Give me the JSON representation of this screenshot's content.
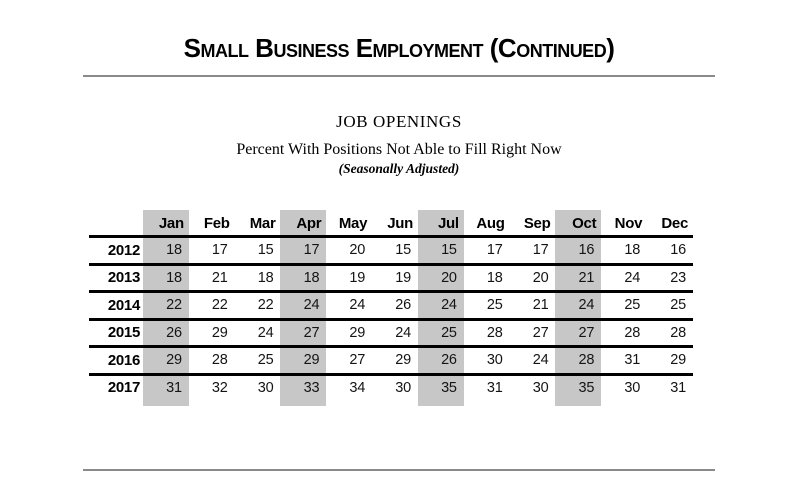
{
  "page": {
    "title": "Small Business Employment (Continued)",
    "section": "JOB OPENINGS",
    "subtitle": "Percent With Positions Not Able to Fill Right Now",
    "subnote": "(Seasonally Adjusted)"
  },
  "colors": {
    "shaded_column": "#c7c7c7",
    "page_rule": "#8a8a8a",
    "table_line": "#000000",
    "text": "#000000"
  },
  "table": {
    "columns": [
      "Jan",
      "Feb",
      "Mar",
      "Apr",
      "May",
      "Jun",
      "Jul",
      "Aug",
      "Sep",
      "Oct",
      "Nov",
      "Dec"
    ],
    "shaded_columns": [
      "Jan",
      "Apr",
      "Jul",
      "Oct"
    ],
    "rows": [
      {
        "year": "2012",
        "values": [
          18,
          17,
          15,
          17,
          20,
          15,
          15,
          17,
          17,
          16,
          18,
          16
        ]
      },
      {
        "year": "2013",
        "values": [
          18,
          21,
          18,
          18,
          19,
          19,
          20,
          18,
          20,
          21,
          24,
          23
        ]
      },
      {
        "year": "2014",
        "values": [
          22,
          22,
          22,
          24,
          24,
          26,
          24,
          25,
          21,
          24,
          25,
          25
        ]
      },
      {
        "year": "2015",
        "values": [
          26,
          29,
          24,
          27,
          29,
          24,
          25,
          28,
          27,
          27,
          28,
          28
        ]
      },
      {
        "year": "2016",
        "values": [
          29,
          28,
          25,
          29,
          27,
          29,
          26,
          30,
          24,
          28,
          31,
          29
        ]
      },
      {
        "year": "2017",
        "values": [
          31,
          32,
          30,
          33,
          34,
          30,
          35,
          31,
          30,
          35,
          30,
          31
        ]
      }
    ]
  },
  "chart_data": {
    "type": "table",
    "title": "JOB OPENINGS",
    "subtitle": "Percent With Positions Not Able to Fill Right Now",
    "note": "(Seasonally Adjusted)",
    "categories": [
      "Jan",
      "Feb",
      "Mar",
      "Apr",
      "May",
      "Jun",
      "Jul",
      "Aug",
      "Sep",
      "Oct",
      "Nov",
      "Dec"
    ],
    "highlighted_columns": [
      "Jan",
      "Apr",
      "Jul",
      "Oct"
    ],
    "series": [
      {
        "name": "2012",
        "values": [
          18,
          17,
          15,
          17,
          20,
          15,
          15,
          17,
          17,
          16,
          18,
          16
        ]
      },
      {
        "name": "2013",
        "values": [
          18,
          21,
          18,
          18,
          19,
          19,
          20,
          18,
          20,
          21,
          24,
          23
        ]
      },
      {
        "name": "2014",
        "values": [
          22,
          22,
          22,
          24,
          24,
          26,
          24,
          25,
          21,
          24,
          25,
          25
        ]
      },
      {
        "name": "2015",
        "values": [
          26,
          29,
          24,
          27,
          29,
          24,
          25,
          28,
          27,
          27,
          28,
          28
        ]
      },
      {
        "name": "2016",
        "values": [
          29,
          28,
          25,
          29,
          27,
          29,
          26,
          30,
          24,
          28,
          31,
          29
        ]
      },
      {
        "name": "2017",
        "values": [
          31,
          32,
          30,
          33,
          34,
          30,
          35,
          31,
          30,
          35,
          30,
          31
        ]
      }
    ]
  }
}
